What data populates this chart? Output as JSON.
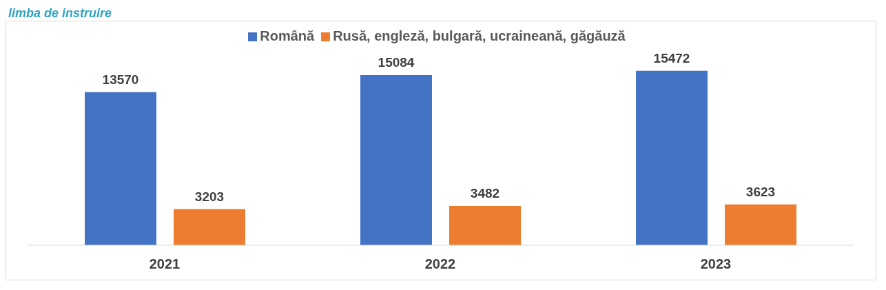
{
  "chart_data": {
    "type": "bar",
    "title": "limba de instruire",
    "categories": [
      "2021",
      "2022",
      "2023"
    ],
    "series": [
      {
        "name": "Română",
        "color": "#4472c4",
        "values": [
          13570,
          15084,
          15472
        ]
      },
      {
        "name": "Rusă, engleză, bulgară, ucraineană, găgăuză",
        "color": "#ed7d31",
        "values": [
          3203,
          3482,
          3623
        ]
      }
    ],
    "data_labels": true,
    "legend": "top"
  }
}
